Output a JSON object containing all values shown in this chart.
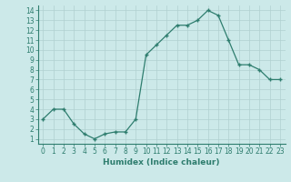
{
  "x": [
    0,
    1,
    2,
    3,
    4,
    5,
    6,
    7,
    8,
    9,
    10,
    11,
    12,
    13,
    14,
    15,
    16,
    17,
    18,
    19,
    20,
    21,
    22,
    23
  ],
  "y": [
    3,
    4,
    4,
    2.5,
    1.5,
    1,
    1.5,
    1.7,
    1.7,
    3,
    9.5,
    10.5,
    11.5,
    12.5,
    12.5,
    13,
    14,
    13.5,
    11,
    8.5,
    8.5,
    8,
    7,
    7
  ],
  "line_color": "#2e7d6e",
  "marker_color": "#2e7d6e",
  "bg_color": "#cce9e9",
  "grid_color_major": "#b0d0d0",
  "grid_color_minor": "#c4e0e0",
  "xlabel": "Humidex (Indice chaleur)",
  "xlim": [
    -0.5,
    23.5
  ],
  "ylim": [
    0.5,
    14.5
  ],
  "yticks": [
    1,
    2,
    3,
    4,
    5,
    6,
    7,
    8,
    9,
    10,
    11,
    12,
    13,
    14
  ],
  "xticks": [
    0,
    1,
    2,
    3,
    4,
    5,
    6,
    7,
    8,
    9,
    10,
    11,
    12,
    13,
    14,
    15,
    16,
    17,
    18,
    19,
    20,
    21,
    22,
    23
  ],
  "label_fontsize": 6.5,
  "tick_fontsize": 5.5
}
